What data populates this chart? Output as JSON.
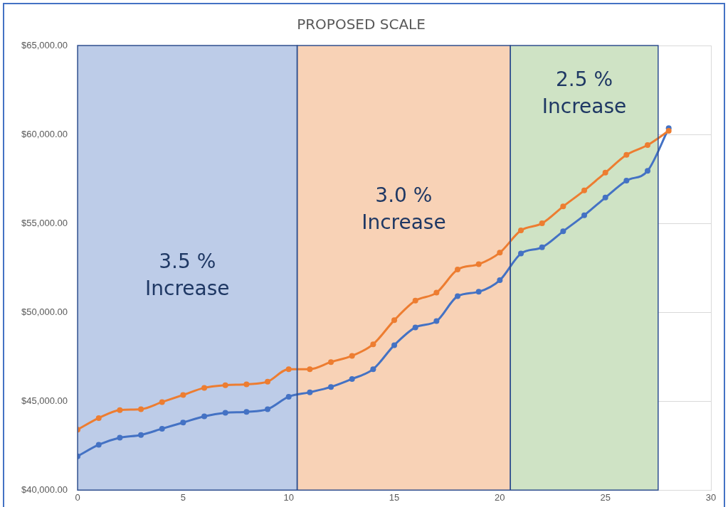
{
  "chart_data": {
    "type": "line",
    "title": "PROPOSED SCALE",
    "x": [
      0,
      1,
      2,
      3,
      4,
      5,
      6,
      7,
      8,
      9,
      10,
      11,
      12,
      13,
      14,
      15,
      16,
      17,
      18,
      19,
      20,
      21,
      22,
      23,
      24,
      25,
      26,
      27,
      28
    ],
    "series": [
      {
        "color": "#ed7d31",
        "values": [
          43400,
          44050,
          44500,
          44550,
          44950,
          45350,
          45750,
          45900,
          45950,
          46100,
          46800,
          46800,
          47200,
          47550,
          48200,
          49550,
          50650,
          51100,
          52400,
          52700,
          53350,
          54600,
          55000,
          55950,
          56850,
          57850,
          58850,
          59400,
          60200
        ]
      },
      {
        "color": "#4472c4",
        "values": [
          41900,
          42550,
          42950,
          43100,
          43450,
          43800,
          44150,
          44350,
          44400,
          44550,
          45250,
          45500,
          45800,
          46250,
          46800,
          48150,
          49150,
          49500,
          50900,
          51150,
          51800,
          53300,
          53650,
          54550,
          55450,
          56450,
          57400,
          57950,
          60350
        ]
      }
    ],
    "xlim": [
      0,
      30
    ],
    "xticks": [
      0,
      5,
      10,
      15,
      20,
      25,
      30
    ],
    "ylim": [
      40000,
      65000
    ],
    "yticks": [
      {
        "value": 40000,
        "label": "$40,000.00"
      },
      {
        "value": 45000,
        "label": "$45,000.00"
      },
      {
        "value": 50000,
        "label": "$50,000.00"
      },
      {
        "value": 55000,
        "label": "$55,000.00"
      },
      {
        "value": 60000,
        "label": "$60,000.00"
      },
      {
        "value": 65000,
        "label": "$65,000.00"
      }
    ],
    "bands": [
      {
        "axis": "x",
        "from": 0,
        "to": 10.4,
        "label": "3.5 %\nIncrease",
        "color": "#bdcce8"
      },
      {
        "axis": "x",
        "from": 10.4,
        "to": 20.5,
        "label": "3.0 %\nIncrease",
        "color": "#f8d2b6"
      },
      {
        "axis": "x",
        "from": 20.5,
        "to": 27.5,
        "label": "2.5 %\nIncrease",
        "color": "#cfe3c5"
      }
    ],
    "grid": true,
    "legend": false,
    "marker": "circle",
    "line_style": "solid"
  }
}
